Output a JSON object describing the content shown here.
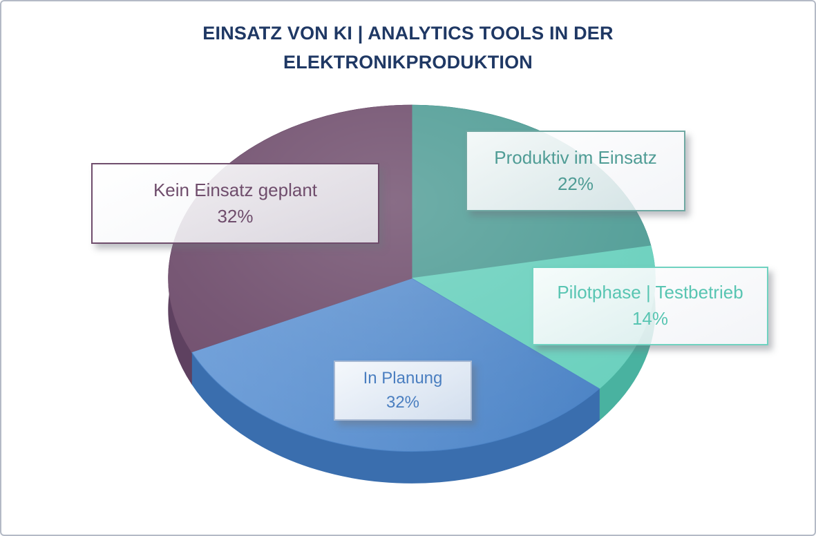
{
  "frame": {
    "background": "#ffffff",
    "border_color": "#b4bac6"
  },
  "chart_data": {
    "type": "pie",
    "title": "EINSATZ VON KI | ANALYTICS TOOLS IN DER ELEKTRONIKPRODUKTION",
    "title_color": "#1F3864",
    "unit": "%",
    "total": 100,
    "start_angle_deg": 0,
    "direction": "clockwise",
    "effect": "3d",
    "legend_position": "callout-boxes",
    "series": [
      {
        "label": "Produktiv im Einsatz",
        "value": 22,
        "value_label": "22%",
        "color": "#4F9C95",
        "side_color": "#3E837D",
        "text_color": "#4F9C95",
        "border_color": "#6FA8A2"
      },
      {
        "label": "Pilotphase | Testbetrieb",
        "value": 14,
        "value_label": "14%",
        "color": "#69D0BD",
        "side_color": "#49B2A0",
        "text_color": "#58C5B2",
        "border_color": "#6FD2C0"
      },
      {
        "label": "In Planung",
        "value": 32,
        "value_label": "32%",
        "color": "#4A82C5",
        "color_light": "#6C9DD8",
        "side_color": "#3A6EAE",
        "text_color": "#4A7EC0",
        "border_color": "#A6B8D3"
      },
      {
        "label": "Kein Einsatz geplant",
        "value": 32,
        "value_label": "32%",
        "color": "#6F4D6C",
        "side_color": "#5E4160",
        "text_color": "#6F4D6C",
        "border_color": "#6F4D6C"
      }
    ]
  }
}
